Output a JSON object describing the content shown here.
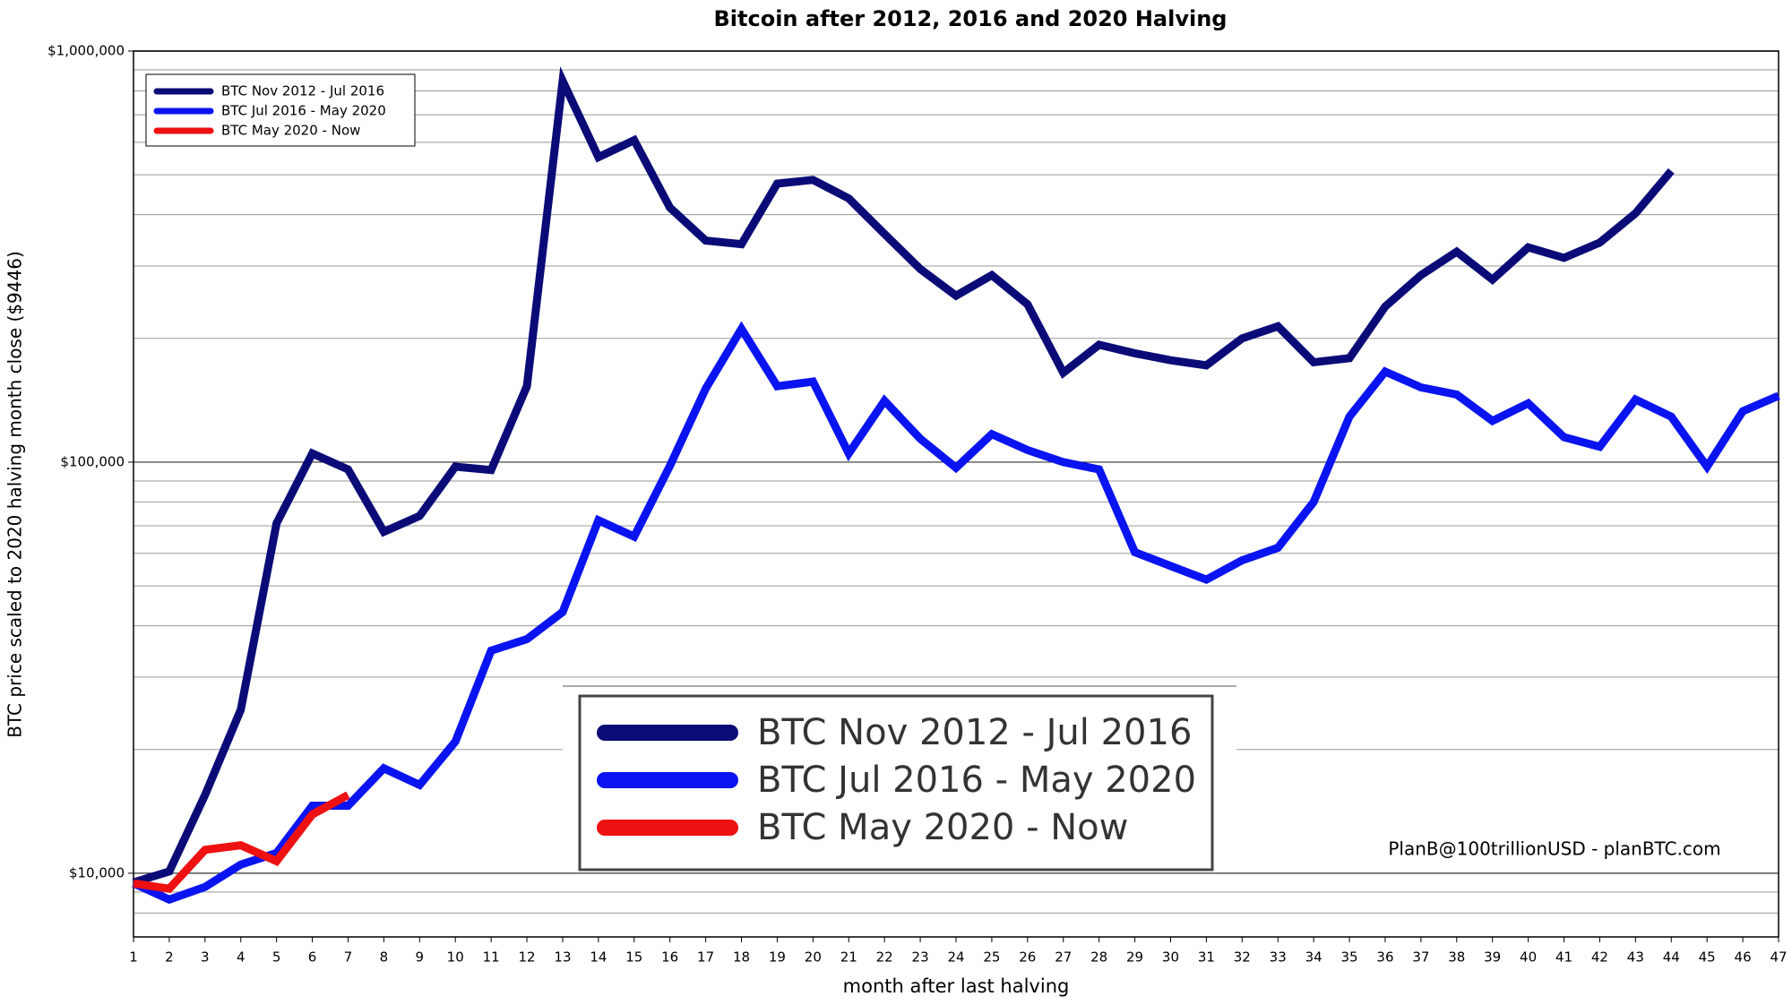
{
  "chart_data": {
    "type": "line",
    "title": "Bitcoin after 2012, 2016 and 2020 Halving",
    "xlabel": "month after last halving",
    "ylabel": "BTC price scaled to 2020 halving month close ($9446)",
    "annotation": "PlanB@100trillionUSD  -  planBTC.com",
    "log_scale_y": true,
    "grid": true,
    "legend_corner": "upper left",
    "x": [
      1,
      2,
      3,
      4,
      5,
      6,
      7,
      8,
      9,
      10,
      11,
      12,
      13,
      14,
      15,
      16,
      17,
      18,
      19,
      20,
      21,
      22,
      23,
      24,
      25,
      26,
      27,
      28,
      29,
      30,
      31,
      32,
      33,
      34,
      35,
      36,
      37,
      38,
      39,
      40,
      41,
      42,
      43,
      44,
      45,
      46,
      47
    ],
    "xlim": [
      1,
      47
    ],
    "xticks": [
      1,
      2,
      3,
      4,
      5,
      6,
      7,
      8,
      9,
      10,
      11,
      12,
      13,
      14,
      15,
      16,
      17,
      18,
      19,
      20,
      21,
      22,
      23,
      24,
      25,
      26,
      27,
      28,
      29,
      30,
      31,
      32,
      33,
      34,
      35,
      36,
      37,
      38,
      39,
      40,
      41,
      42,
      43,
      44,
      45,
      46,
      47
    ],
    "ylim": [
      7000,
      1000000
    ],
    "yticks": [
      {
        "value": 10000,
        "label": "$10,000"
      },
      {
        "value": 100000,
        "label": "$100,000"
      },
      {
        "value": 1000000,
        "label": "$1,000,000"
      }
    ],
    "y_minor_ticks": [
      8000,
      9000,
      20000,
      30000,
      40000,
      50000,
      60000,
      70000,
      80000,
      90000,
      200000,
      300000,
      400000,
      500000,
      600000,
      700000,
      800000,
      900000
    ],
    "series": [
      {
        "name": "BTC Nov 2012 - Jul 2016",
        "color": "#0b0b78",
        "values": [
          9500,
          10100,
          15500,
          25000,
          71000,
          105000,
          96000,
          67700,
          74000,
          97500,
          95700,
          153000,
          846000,
          552000,
          607000,
          416000,
          346000,
          339000,
          476000,
          486000,
          438000,
          359000,
          295000,
          254000,
          285000,
          242000,
          165000,
          193000,
          184000,
          177000,
          172000,
          200000,
          214000,
          175000,
          179000,
          239000,
          285000,
          325000,
          278000,
          333000,
          314000,
          342000,
          403000,
          511000,
          null,
          null,
          null
        ]
      },
      {
        "name": "BTC Jul 2016 - May 2020",
        "color": "#0a14f0",
        "values": [
          9450,
          8630,
          9260,
          10500,
          11200,
          14600,
          14600,
          18000,
          16400,
          20900,
          34800,
          37100,
          43200,
          72200,
          65900,
          98000,
          151000,
          211000,
          153000,
          157000,
          105000,
          141000,
          114000,
          96900,
          117000,
          107000,
          100000,
          96000,
          60400,
          55900,
          51800,
          57700,
          61900,
          80000,
          129000,
          166000,
          152000,
          146000,
          126000,
          139000,
          115000,
          109000,
          142000,
          129000,
          97500,
          133000,
          145000
        ]
      },
      {
        "name": "BTC May 2020 - Now",
        "color": "#ee1111",
        "values": [
          9450,
          9170,
          11400,
          11700,
          10700,
          13900,
          15500,
          null,
          null,
          null,
          null,
          null,
          null,
          null,
          null,
          null,
          null,
          null,
          null,
          null,
          null,
          null,
          null,
          null,
          null,
          null,
          null,
          null,
          null,
          null,
          null,
          null,
          null,
          null,
          null,
          null,
          null,
          null,
          null,
          null,
          null,
          null,
          null,
          null,
          null,
          null,
          null
        ]
      }
    ]
  }
}
